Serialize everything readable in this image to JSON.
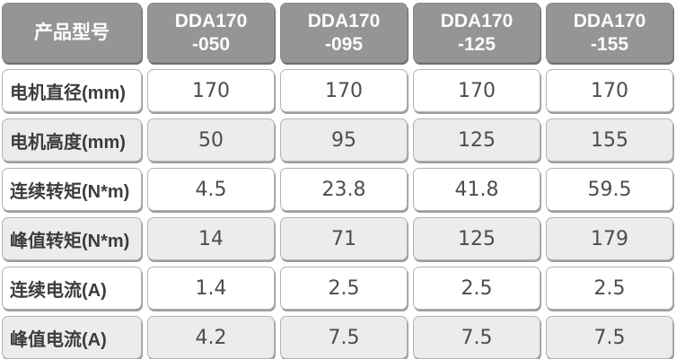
{
  "chart_data": {
    "type": "table",
    "title": "",
    "columns": [
      "产品型号",
      "DDA170-050",
      "DDA170-095",
      "DDA170-125",
      "DDA170-155"
    ],
    "rows": [
      {
        "label": "电机直径(mm)",
        "values": [
          "170",
          "170",
          "170",
          "170"
        ]
      },
      {
        "label": "电机高度(mm)",
        "values": [
          "50",
          "95",
          "125",
          "155"
        ]
      },
      {
        "label": "连续转矩(N*m)",
        "values": [
          "4.5",
          "23.8",
          "41.8",
          "59.5"
        ]
      },
      {
        "label": "峰值转矩(N*m)",
        "values": [
          "14",
          "71",
          "125",
          "179"
        ]
      },
      {
        "label": "连续电流(A)",
        "values": [
          "1.4",
          "2.5",
          "2.5",
          "2.5"
        ]
      },
      {
        "label": "峰值电流(A)",
        "values": [
          "4.2",
          "7.5",
          "7.5",
          "7.5"
        ]
      }
    ]
  },
  "table": {
    "header": {
      "label_column": "产品型号",
      "models": [
        {
          "line1": "DDA170",
          "line2": "-050"
        },
        {
          "line1": "DDA170",
          "line2": "-095"
        },
        {
          "line1": "DDA170",
          "line2": "-125"
        },
        {
          "line1": "DDA170",
          "line2": "-155"
        }
      ]
    },
    "rows": [
      {
        "label": "电机直径(mm)",
        "values": [
          "170",
          "170",
          "170",
          "170"
        ]
      },
      {
        "label": "电机高度(mm)",
        "values": [
          "50",
          "95",
          "125",
          "155"
        ]
      },
      {
        "label": "连续转矩(N*m)",
        "values": [
          "4.5",
          "23.8",
          "41.8",
          "59.5"
        ]
      },
      {
        "label": "峰值转矩(N*m)",
        "values": [
          "14",
          "71",
          "125",
          "179"
        ]
      },
      {
        "label": "连续电流(A)",
        "values": [
          "1.4",
          "2.5",
          "2.5",
          "2.5"
        ]
      },
      {
        "label": "峰值电流(A)",
        "values": [
          "4.2",
          "7.5",
          "7.5",
          "7.5"
        ]
      }
    ]
  },
  "colors": {
    "header_bg": "#959595",
    "header_text": "#fdfdfd",
    "row_bg": "#ffffff",
    "row_alt_bg": "#ececec",
    "border_color": "#b3b3b3",
    "cell_shadow": "#9c9c9c",
    "label_text": "#3c3c3c",
    "value_text": "#4d4d4d"
  }
}
